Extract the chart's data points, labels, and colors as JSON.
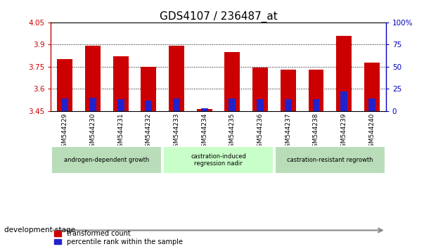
{
  "title": "GDS4107 / 236487_at",
  "samples": [
    "GSM544229",
    "GSM544230",
    "GSM544231",
    "GSM544232",
    "GSM544233",
    "GSM544234",
    "GSM544235",
    "GSM544236",
    "GSM544237",
    "GSM544238",
    "GSM544239",
    "GSM544240"
  ],
  "transformed_counts": [
    3.8,
    3.89,
    3.82,
    3.75,
    3.89,
    3.465,
    3.85,
    3.745,
    3.73,
    3.73,
    3.96,
    3.78
  ],
  "percentile_ranks": [
    14,
    15,
    13,
    12,
    14,
    3,
    14,
    13,
    13,
    13,
    22,
    14
  ],
  "ymin": 3.45,
  "ymax": 4.05,
  "yticks": [
    3.45,
    3.6,
    3.75,
    3.9,
    4.05
  ],
  "ytick_labels": [
    "3.45",
    "3.6",
    "3.75",
    "3.9",
    "4.05"
  ],
  "y2min": 0,
  "y2max": 100,
  "y2ticks": [
    0,
    25,
    50,
    75,
    100
  ],
  "y2tick_labels": [
    "0",
    "25",
    "50",
    "75",
    "100%"
  ],
  "grid_lines": [
    3.6,
    3.75,
    3.9
  ],
  "bar_color": "#cc0000",
  "blue_color": "#2222cc",
  "bar_width": 0.55,
  "blue_bar_width": 0.25,
  "groups": [
    {
      "label": "androgen-dependent growth",
      "start": 0,
      "end": 3,
      "color": "#b8ddb8"
    },
    {
      "label": "castration-induced\nregression nadir",
      "start": 4,
      "end": 7,
      "color": "#c8ffc8"
    },
    {
      "label": "castration-resistant regrowth",
      "start": 8,
      "end": 11,
      "color": "#b8ddb8"
    }
  ],
  "dev_stage_label": "development stage",
  "legend_items": [
    {
      "label": "transformed count",
      "color": "#cc0000"
    },
    {
      "label": "percentile rank within the sample",
      "color": "#2222cc"
    }
  ],
  "title_fontsize": 11,
  "axis_color_left": "#cc0000",
  "axis_color_right": "#0000bb",
  "sample_bg": "#cccccc",
  "plot_bg": "#ffffff"
}
